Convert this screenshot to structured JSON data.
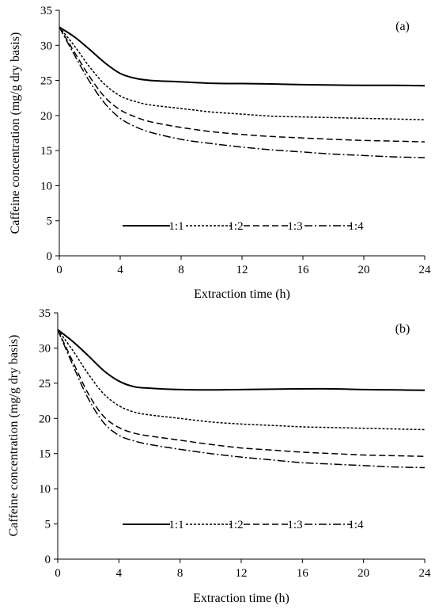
{
  "chart_data": [
    {
      "type": "line",
      "panel_label": "(a)",
      "xlabel": "Extraction time (h)",
      "ylabel": "Caffeine concentration (mg/g dry basis)",
      "xlim": [
        0,
        24
      ],
      "ylim": [
        0,
        35
      ],
      "xticks": [
        0,
        4,
        8,
        12,
        16,
        20,
        24
      ],
      "yticks": [
        0,
        5,
        10,
        15,
        20,
        25,
        30,
        35
      ],
      "grid": false,
      "legend_position": "bottom-center",
      "x": [
        0,
        1,
        2,
        3,
        4,
        5,
        6,
        8,
        10,
        12,
        14,
        16,
        18,
        20,
        22,
        24
      ],
      "series": [
        {
          "name": "1:1",
          "dash": "solid",
          "values": [
            32.6,
            31.2,
            29.4,
            27.5,
            26.0,
            25.3,
            25.0,
            24.8,
            24.6,
            24.55,
            24.5,
            24.4,
            24.35,
            24.3,
            24.3,
            24.25
          ]
        },
        {
          "name": "1:2",
          "dash": "dotted",
          "values": [
            32.6,
            29.9,
            26.9,
            24.4,
            22.8,
            22.0,
            21.5,
            21.0,
            20.5,
            20.2,
            19.9,
            19.8,
            19.7,
            19.6,
            19.5,
            19.4
          ]
        },
        {
          "name": "1:3",
          "dash": "dashed",
          "values": [
            32.6,
            29.0,
            25.5,
            22.6,
            20.8,
            19.8,
            19.1,
            18.3,
            17.7,
            17.3,
            17.0,
            16.8,
            16.6,
            16.45,
            16.35,
            16.25
          ]
        },
        {
          "name": "1:4",
          "dash": "dashdot",
          "values": [
            32.6,
            28.6,
            24.8,
            21.7,
            19.6,
            18.4,
            17.6,
            16.6,
            16.0,
            15.5,
            15.1,
            14.8,
            14.5,
            14.3,
            14.1,
            14.0
          ]
        }
      ]
    },
    {
      "type": "line",
      "panel_label": "(b)",
      "xlabel": "Extraction time (h)",
      "ylabel": "Caffeine concentration (mg/g dry basis)",
      "xlim": [
        0,
        24
      ],
      "ylim": [
        0,
        35
      ],
      "xticks": [
        0,
        4,
        8,
        12,
        16,
        20,
        24
      ],
      "yticks": [
        0,
        5,
        10,
        15,
        20,
        25,
        30,
        35
      ],
      "grid": false,
      "legend_position": "bottom-center",
      "x": [
        0,
        1,
        2,
        3,
        4,
        5,
        6,
        8,
        10,
        12,
        14,
        16,
        18,
        20,
        22,
        24
      ],
      "series": [
        {
          "name": "1:1",
          "dash": "solid",
          "values": [
            32.6,
            30.9,
            28.9,
            26.8,
            25.3,
            24.5,
            24.3,
            24.1,
            24.05,
            24.1,
            24.15,
            24.2,
            24.2,
            24.1,
            24.05,
            24.0
          ]
        },
        {
          "name": "1:2",
          "dash": "dotted",
          "values": [
            32.6,
            29.6,
            26.3,
            23.5,
            21.8,
            20.9,
            20.5,
            20.0,
            19.5,
            19.2,
            19.0,
            18.8,
            18.7,
            18.6,
            18.5,
            18.4
          ]
        },
        {
          "name": "1:3",
          "dash": "dashed",
          "values": [
            32.6,
            28.0,
            23.5,
            20.3,
            18.7,
            17.9,
            17.5,
            16.9,
            16.3,
            15.8,
            15.5,
            15.2,
            15.0,
            14.8,
            14.7,
            14.6
          ]
        },
        {
          "name": "1:4",
          "dash": "dashdot",
          "values": [
            32.6,
            27.5,
            22.8,
            19.4,
            17.6,
            16.8,
            16.3,
            15.6,
            15.0,
            14.5,
            14.1,
            13.7,
            13.5,
            13.3,
            13.1,
            13.0
          ]
        }
      ]
    }
  ]
}
